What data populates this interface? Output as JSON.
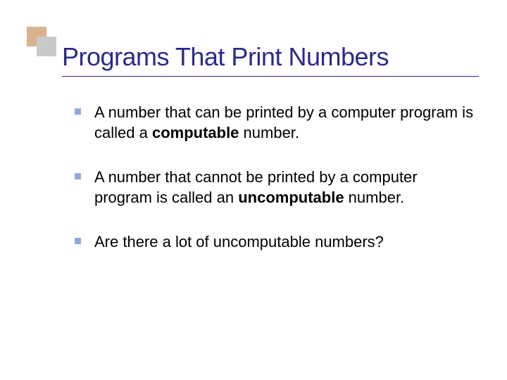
{
  "colors": {
    "title_color": "#2a2a8a",
    "title_shadow": "#bdbdbd",
    "underline": "#2a2a8a",
    "bullet_marker": "#8faadc",
    "accent_a": "#d9b38c",
    "accent_b": "#c9c9c9",
    "body_text": "#000000",
    "background": "#ffffff"
  },
  "typography": {
    "title_fontsize": 36,
    "body_fontsize": 22,
    "font_family": "Verdana"
  },
  "title": "Programs That Print Numbers",
  "bullets": [
    {
      "runs": [
        {
          "t": "A number that can be printed by a computer program is called a ",
          "bold": false
        },
        {
          "t": "computable",
          "bold": true
        },
        {
          "t": " number.",
          "bold": false
        }
      ]
    },
    {
      "runs": [
        {
          "t": "A number that cannot be printed by a computer program is called an ",
          "bold": false
        },
        {
          "t": "uncomputable",
          "bold": true
        },
        {
          "t": " number.",
          "bold": false
        }
      ]
    },
    {
      "runs": [
        {
          "t": "Are there a lot of uncomputable numbers?",
          "bold": false
        }
      ]
    }
  ]
}
